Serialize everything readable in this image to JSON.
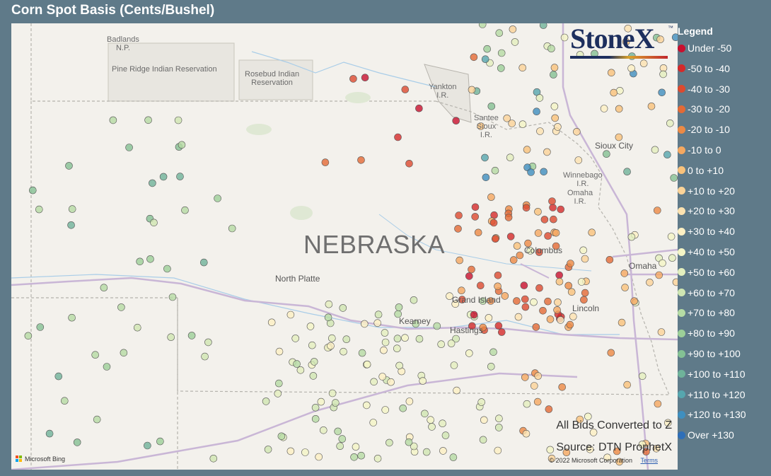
{
  "title": "Corn Spot Basis (Cents/Bushel)",
  "logo": {
    "text": "StoneX",
    "tm": "™"
  },
  "map": {
    "state_label": "NEBRASKA",
    "places": {
      "badlands": "Badlands\nN.P.",
      "pine_ridge": "Pine Ridge Indian Reservation",
      "rosebud": "Rosebud Indian\nReservation",
      "yankton": "Yankton\nI.R.",
      "santee": "Santee\nSioux\nI.R.",
      "winnebago": "Winnebago\nI.R.",
      "omaha_ir": "Omaha\nI.R."
    },
    "cities": {
      "north_platte": "North Platte",
      "grand_island": "Grand Island",
      "kearney": "Kearney",
      "hastings": "Hastings",
      "columbus": "Columbus",
      "sioux_city": "Sioux City",
      "omaha": "Omaha",
      "lincoln": "Lincoln"
    },
    "notes": {
      "converted": "All Bids Converted to Z",
      "source": "Source: DTN ProphetX"
    },
    "copyright": "© 2022 Microsoft Corporation",
    "terms": "Terms",
    "bing": "Microsoft Bing"
  },
  "legend": {
    "title": "Legend",
    "items": [
      {
        "label": "Under -50",
        "color": "#c8102e"
      },
      {
        "label": "-50 to -40",
        "color": "#d42a2a"
      },
      {
        "label": "-40 to -30",
        "color": "#dc4a2f"
      },
      {
        "label": "-30 to -20",
        "color": "#e36a36"
      },
      {
        "label": "-20 to -10",
        "color": "#ec8a45"
      },
      {
        "label": "-10 to 0",
        "color": "#f5a860"
      },
      {
        "label": "0 to +10",
        "color": "#f9c27b"
      },
      {
        "label": "+10 to +20",
        "color": "#fbd398"
      },
      {
        "label": "+20 to +30",
        "color": "#fce2b0"
      },
      {
        "label": "+30 to +40",
        "color": "#fdf0c3"
      },
      {
        "label": "+40 to +50",
        "color": "#f4f5c6"
      },
      {
        "label": "+50 to +60",
        "color": "#e3efbe"
      },
      {
        "label": "+60 to +70",
        "color": "#cfe6b2"
      },
      {
        "label": "+70 to +80",
        "color": "#b5dba4"
      },
      {
        "label": "+80 to +90",
        "color": "#9ccf98"
      },
      {
        "label": "+90 to +100",
        "color": "#84c194"
      },
      {
        "label": "+100 to +110",
        "color": "#6fb39a"
      },
      {
        "label": "+110 to +120",
        "color": "#56a6ae"
      },
      {
        "label": "+120 to +130",
        "color": "#3f8fbf"
      },
      {
        "label": "Over +130",
        "color": "#2f6fb8"
      }
    ]
  }
}
